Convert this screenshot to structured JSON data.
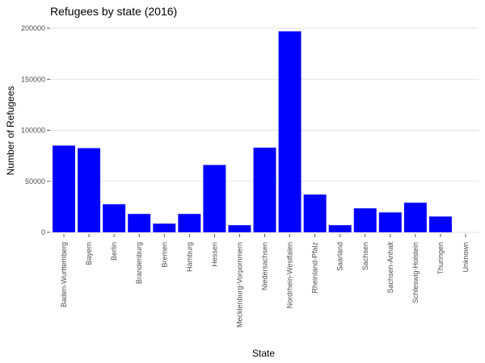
{
  "chart_data": {
    "type": "bar",
    "title": "Refugees by state (2016)",
    "xlabel": "State",
    "ylabel": "Number of Refugees",
    "categories": [
      "Baden-Wurttemberg",
      "Bayern",
      "Berlin",
      "Brandenburg",
      "Bremen",
      "Hamburg",
      "Hessen",
      "Mecklenburg-Vorpommern",
      "Niedersachsen",
      "Nordrhein-Westfalen",
      "Rheinland-Pfalz",
      "Saarland",
      "Sachsen",
      "Sachsen-Anhalt",
      "Schleswig-Holstein",
      "Thuringen",
      "Unknown"
    ],
    "values": [
      85000,
      82500,
      27500,
      18000,
      8500,
      18000,
      66000,
      7000,
      83000,
      197000,
      37000,
      7000,
      23500,
      19500,
      29000,
      15500,
      0
    ],
    "ylim": [
      0,
      200000
    ],
    "yticks": [
      0,
      50000,
      100000,
      150000,
      200000
    ],
    "ytick_labels": [
      "0",
      "50000",
      "100000",
      "150000",
      "200000"
    ],
    "bar_color": "#0000ff",
    "grid": true,
    "legend": "none"
  }
}
